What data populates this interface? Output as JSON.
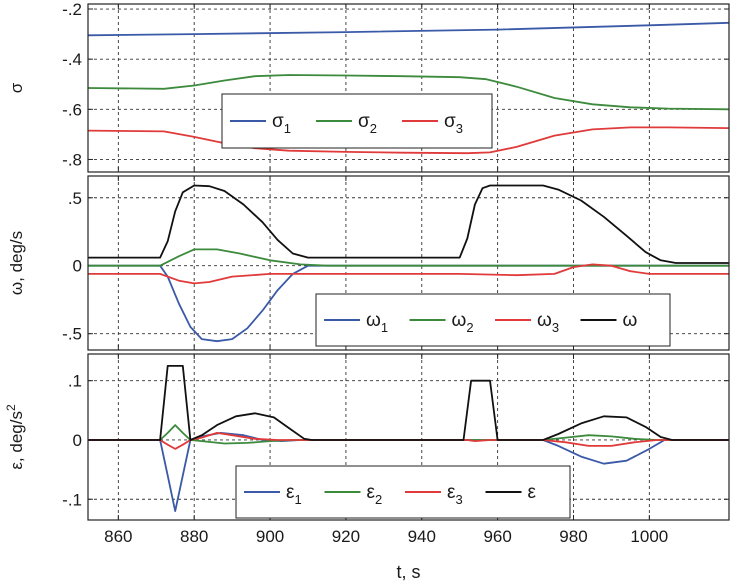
{
  "xlabel": "t, s",
  "xlim": [
    852,
    1021
  ],
  "xticks": [
    860,
    880,
    900,
    920,
    940,
    960,
    980,
    1000
  ],
  "colors": {
    "s1": "#3a5aa8",
    "s2": "#3c8a3c",
    "s3": "#e03a3a",
    "total": "#111111"
  },
  "chart_data": [
    {
      "id": "sigma",
      "type": "line",
      "ylabel": "σ",
      "ylim": [
        -0.85,
        -0.18
      ],
      "yticks": [
        -0.2,
        -0.4,
        -0.6,
        -0.8
      ],
      "legend": {
        "position": "center"
      },
      "series": [
        {
          "name": "σ",
          "sub": "1",
          "key": "s1",
          "points": [
            [
              852,
              -0.305
            ],
            [
              880,
              -0.3
            ],
            [
              920,
              -0.292
            ],
            [
              960,
              -0.282
            ],
            [
              1000,
              -0.265
            ],
            [
              1021,
              -0.255
            ]
          ]
        },
        {
          "name": "σ",
          "sub": "2",
          "key": "s2",
          "points": [
            [
              852,
              -0.515
            ],
            [
              872,
              -0.518
            ],
            [
              880,
              -0.505
            ],
            [
              888,
              -0.485
            ],
            [
              896,
              -0.468
            ],
            [
              905,
              -0.463
            ],
            [
              920,
              -0.465
            ],
            [
              935,
              -0.468
            ],
            [
              950,
              -0.472
            ],
            [
              957,
              -0.48
            ],
            [
              965,
              -0.51
            ],
            [
              975,
              -0.555
            ],
            [
              985,
              -0.58
            ],
            [
              995,
              -0.592
            ],
            [
              1005,
              -0.597
            ],
            [
              1021,
              -0.6
            ]
          ]
        },
        {
          "name": "σ",
          "sub": "3",
          "key": "s3",
          "points": [
            [
              852,
              -0.685
            ],
            [
              872,
              -0.688
            ],
            [
              880,
              -0.71
            ],
            [
              888,
              -0.735
            ],
            [
              896,
              -0.755
            ],
            [
              905,
              -0.765
            ],
            [
              920,
              -0.77
            ],
            [
              935,
              -0.773
            ],
            [
              952,
              -0.775
            ],
            [
              958,
              -0.772
            ],
            [
              965,
              -0.75
            ],
            [
              975,
              -0.705
            ],
            [
              985,
              -0.68
            ],
            [
              995,
              -0.672
            ],
            [
              1005,
              -0.672
            ],
            [
              1021,
              -0.675
            ]
          ]
        }
      ]
    },
    {
      "id": "omega",
      "type": "line",
      "ylabel": "ω, deg/s",
      "ylim": [
        -0.62,
        0.66
      ],
      "yticks": [
        0.5,
        0,
        -0.5
      ],
      "legend": {
        "position": "bottom-right"
      },
      "series": [
        {
          "name": "ω",
          "sub": "1",
          "key": "s1",
          "points": [
            [
              852,
              0.0
            ],
            [
              871,
              0.0
            ],
            [
              873,
              -0.08
            ],
            [
              876,
              -0.28
            ],
            [
              879,
              -0.45
            ],
            [
              882,
              -0.54
            ],
            [
              886,
              -0.555
            ],
            [
              890,
              -0.54
            ],
            [
              894,
              -0.46
            ],
            [
              898,
              -0.33
            ],
            [
              902,
              -0.18
            ],
            [
              906,
              -0.06
            ],
            [
              910,
              0.0
            ],
            [
              950,
              0.0
            ],
            [
              952,
              0.0
            ],
            [
              958,
              0.0
            ],
            [
              980,
              0.0
            ],
            [
              1000,
              0.0
            ],
            [
              1021,
              0.0
            ]
          ]
        },
        {
          "name": "ω",
          "sub": "2",
          "key": "s2",
          "points": [
            [
              852,
              0.0
            ],
            [
              871,
              0.0
            ],
            [
              876,
              0.07
            ],
            [
              880,
              0.12
            ],
            [
              886,
              0.12
            ],
            [
              892,
              0.09
            ],
            [
              900,
              0.04
            ],
            [
              908,
              0.01
            ],
            [
              915,
              0.0
            ],
            [
              952,
              0.0
            ],
            [
              960,
              0.0
            ],
            [
              1000,
              0.0
            ],
            [
              1021,
              0.0
            ]
          ]
        },
        {
          "name": "ω",
          "sub": "3",
          "key": "s3",
          "points": [
            [
              852,
              -0.06
            ],
            [
              871,
              -0.06
            ],
            [
              876,
              -0.11
            ],
            [
              880,
              -0.13
            ],
            [
              884,
              -0.12
            ],
            [
              890,
              -0.08
            ],
            [
              900,
              -0.06
            ],
            [
              950,
              -0.06
            ],
            [
              965,
              -0.07
            ],
            [
              975,
              -0.06
            ],
            [
              980,
              -0.01
            ],
            [
              985,
              0.01
            ],
            [
              990,
              0.0
            ],
            [
              995,
              -0.04
            ],
            [
              1000,
              -0.06
            ],
            [
              1021,
              -0.06
            ]
          ]
        },
        {
          "name": "ω",
          "sub": "",
          "key": "total",
          "points": [
            [
              852,
              0.06
            ],
            [
              871,
              0.06
            ],
            [
              873,
              0.18
            ],
            [
              875,
              0.4
            ],
            [
              877,
              0.54
            ],
            [
              880,
              0.59
            ],
            [
              884,
              0.585
            ],
            [
              888,
              0.55
            ],
            [
              893,
              0.45
            ],
            [
              898,
              0.32
            ],
            [
              902,
              0.19
            ],
            [
              906,
              0.09
            ],
            [
              910,
              0.06
            ],
            [
              950,
              0.06
            ],
            [
              952,
              0.2
            ],
            [
              954,
              0.45
            ],
            [
              956,
              0.57
            ],
            [
              958,
              0.59
            ],
            [
              972,
              0.59
            ],
            [
              976,
              0.56
            ],
            [
              982,
              0.48
            ],
            [
              988,
              0.36
            ],
            [
              994,
              0.22
            ],
            [
              999,
              0.1
            ],
            [
              1003,
              0.04
            ],
            [
              1007,
              0.02
            ],
            [
              1021,
              0.02
            ]
          ]
        }
      ]
    },
    {
      "id": "epsilon",
      "type": "line",
      "ylabel": "ε, deg/s",
      "ylabel_sup": "2",
      "ylim": [
        -0.135,
        0.145
      ],
      "yticks": [
        0.1,
        0,
        -0.1
      ],
      "legend": {
        "position": "bottom-right"
      },
      "series": [
        {
          "name": "ε",
          "sub": "1",
          "key": "s1",
          "points": [
            [
              852,
              0
            ],
            [
              871,
              0
            ],
            [
              873,
              -0.06
            ],
            [
              875,
              -0.12
            ],
            [
              877,
              -0.06
            ],
            [
              879,
              0
            ],
            [
              882,
              0.006
            ],
            [
              887,
              0.012
            ],
            [
              893,
              0.008
            ],
            [
              898,
              0.0
            ],
            [
              903,
              -0.002
            ],
            [
              908,
              0
            ],
            [
              952,
              0
            ],
            [
              958,
              0
            ],
            [
              972,
              0
            ],
            [
              976,
              -0.01
            ],
            [
              982,
              -0.028
            ],
            [
              988,
              -0.04
            ],
            [
              994,
              -0.035
            ],
            [
              1000,
              -0.015
            ],
            [
              1004,
              0
            ],
            [
              1021,
              0
            ]
          ]
        },
        {
          "name": "ε",
          "sub": "2",
          "key": "s2",
          "points": [
            [
              852,
              0
            ],
            [
              871,
              0
            ],
            [
              873,
              0.012
            ],
            [
              875,
              0.025
            ],
            [
              877,
              0.012
            ],
            [
              879,
              0
            ],
            [
              882,
              -0.002
            ],
            [
              888,
              -0.006
            ],
            [
              894,
              -0.005
            ],
            [
              900,
              -0.002
            ],
            [
              906,
              0
            ],
            [
              952,
              0
            ],
            [
              972,
              0
            ],
            [
              978,
              0.004
            ],
            [
              984,
              0.008
            ],
            [
              990,
              0.006
            ],
            [
              996,
              0.002
            ],
            [
              1002,
              0
            ],
            [
              1021,
              0
            ]
          ]
        },
        {
          "name": "ε",
          "sub": "3",
          "key": "s3",
          "points": [
            [
              852,
              0
            ],
            [
              871,
              0
            ],
            [
              873,
              -0.008
            ],
            [
              875,
              -0.015
            ],
            [
              877,
              -0.008
            ],
            [
              879,
              0
            ],
            [
              882,
              0.004
            ],
            [
              886,
              0.012
            ],
            [
              890,
              0.008
            ],
            [
              896,
              0.002
            ],
            [
              902,
              0
            ],
            [
              952,
              0
            ],
            [
              954,
              -0.002
            ],
            [
              958,
              0
            ],
            [
              972,
              0
            ],
            [
              978,
              -0.004
            ],
            [
              984,
              -0.01
            ],
            [
              990,
              -0.01
            ],
            [
              996,
              -0.004
            ],
            [
              1002,
              0
            ],
            [
              1021,
              0
            ]
          ]
        },
        {
          "name": "ε",
          "sub": "",
          "key": "total",
          "points": [
            [
              852,
              0
            ],
            [
              871,
              0
            ],
            [
              873,
              0.125
            ],
            [
              877,
              0.125
            ],
            [
              879,
              0
            ],
            [
              882,
              0.008
            ],
            [
              886,
              0.025
            ],
            [
              891,
              0.04
            ],
            [
              896,
              0.045
            ],
            [
              901,
              0.038
            ],
            [
              905,
              0.02
            ],
            [
              909,
              0.002
            ],
            [
              911,
              0
            ],
            [
              951,
              0
            ],
            [
              953,
              0.1
            ],
            [
              958,
              0.1
            ],
            [
              960,
              0
            ],
            [
              972,
              0
            ],
            [
              976,
              0.01
            ],
            [
              982,
              0.028
            ],
            [
              988,
              0.04
            ],
            [
              994,
              0.038
            ],
            [
              999,
              0.022
            ],
            [
              1003,
              0.005
            ],
            [
              1006,
              0
            ],
            [
              1021,
              0
            ]
          ]
        }
      ]
    }
  ]
}
